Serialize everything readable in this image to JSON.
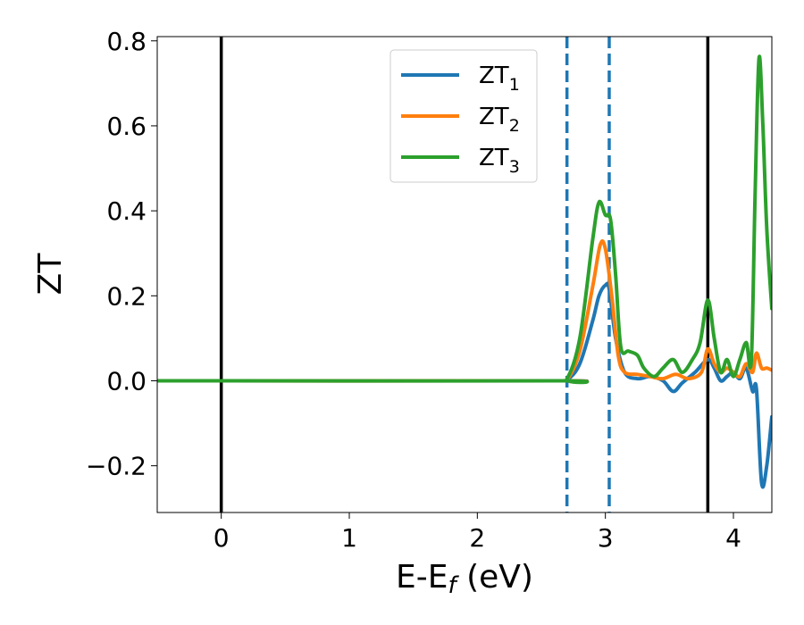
{
  "chart_data": {
    "type": "line",
    "xlabel": "E-E",
    "xlabel_sub": "f",
    "xlabel_unit": " (eV)",
    "ylabel": "ZT",
    "xlim": [
      -0.5,
      4.3
    ],
    "ylim": [
      -0.31,
      0.81
    ],
    "xticks": [
      {
        "value": 0,
        "label": "0"
      },
      {
        "value": 1,
        "label": "1"
      },
      {
        "value": 2,
        "label": "2"
      },
      {
        "value": 3,
        "label": "3"
      },
      {
        "value": 4,
        "label": "4"
      }
    ],
    "yticks": [
      {
        "value": -0.2,
        "label": "−0.2"
      },
      {
        "value": 0.0,
        "label": "0.0"
      },
      {
        "value": 0.2,
        "label": "0.2"
      },
      {
        "value": 0.4,
        "label": "0.4"
      },
      {
        "value": 0.6,
        "label": "0.6"
      },
      {
        "value": 0.8,
        "label": "0.8"
      }
    ],
    "grid": false,
    "legend_position": "top-center",
    "vertical_lines": [
      {
        "x": 0.0,
        "style": "solid",
        "color": "#000000"
      },
      {
        "x": 2.7,
        "style": "dashed",
        "color": "#1f77b4"
      },
      {
        "x": 3.03,
        "style": "dashed",
        "color": "#1f77b4"
      },
      {
        "x": 3.8,
        "style": "solid",
        "color": "#000000"
      }
    ],
    "series": [
      {
        "name": "ZT",
        "name_sub": "1",
        "color": "#1f77b4",
        "x": [
          -0.5,
          2.6,
          2.7,
          2.8,
          2.9,
          2.95,
          3.0,
          3.03,
          3.08,
          3.15,
          3.25,
          3.35,
          3.45,
          3.53,
          3.6,
          3.7,
          3.8,
          3.85,
          3.9,
          3.95,
          4.0,
          4.05,
          4.1,
          4.15,
          4.18,
          4.22,
          4.26,
          4.3
        ],
        "y": [
          0.0,
          0.0,
          0.002,
          0.04,
          0.14,
          0.2,
          0.225,
          0.215,
          0.1,
          0.02,
          0.005,
          0.01,
          0.0,
          -0.025,
          -0.005,
          0.02,
          0.05,
          0.03,
          0.0,
          0.01,
          0.02,
          0.005,
          0.03,
          -0.025,
          -0.02,
          -0.24,
          -0.2,
          -0.085
        ]
      },
      {
        "name": "ZT",
        "name_sub": "2",
        "color": "#ff7f0e",
        "x": [
          -0.5,
          2.6,
          2.7,
          2.8,
          2.9,
          2.96,
          3.0,
          3.05,
          3.1,
          3.15,
          3.25,
          3.35,
          3.45,
          3.55,
          3.65,
          3.75,
          3.8,
          3.85,
          3.9,
          3.95,
          4.0,
          4.05,
          4.1,
          4.15,
          4.18,
          4.22,
          4.26,
          4.3
        ],
        "y": [
          0.0,
          0.0,
          0.003,
          0.07,
          0.22,
          0.32,
          0.31,
          0.2,
          0.06,
          0.02,
          0.015,
          0.01,
          0.005,
          0.015,
          0.005,
          0.02,
          0.075,
          0.04,
          0.02,
          0.03,
          0.02,
          0.01,
          0.04,
          0.02,
          0.065,
          0.03,
          0.03,
          0.025
        ]
      },
      {
        "name": "ZT",
        "name_sub": "3",
        "color": "#2ca02c",
        "x": [
          -0.5,
          2.6,
          2.7,
          2.8,
          2.9,
          2.95,
          3.0,
          3.04,
          3.08,
          3.12,
          3.18,
          3.25,
          3.3,
          3.38,
          3.45,
          3.53,
          3.6,
          3.68,
          3.74,
          3.8,
          3.85,
          3.9,
          3.95,
          4.0,
          4.05,
          4.1,
          4.14,
          4.17,
          4.2,
          4.23,
          4.26,
          4.3
        ],
        "y": [
          0.0,
          0.0,
          0.005,
          0.1,
          0.33,
          0.42,
          0.39,
          0.38,
          0.25,
          0.08,
          0.07,
          0.06,
          0.03,
          0.01,
          0.03,
          0.05,
          0.02,
          0.05,
          0.09,
          0.19,
          0.1,
          0.02,
          0.05,
          0.01,
          0.05,
          0.09,
          0.05,
          0.45,
          0.76,
          0.6,
          0.36,
          0.17
        ]
      }
    ]
  }
}
